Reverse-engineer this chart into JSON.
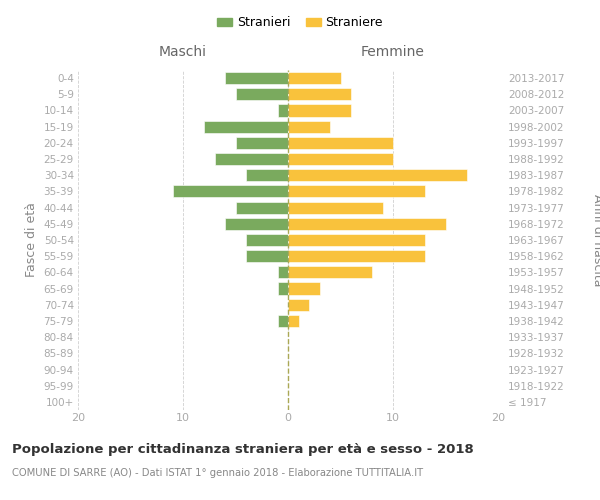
{
  "age_groups": [
    "100+",
    "95-99",
    "90-94",
    "85-89",
    "80-84",
    "75-79",
    "70-74",
    "65-69",
    "60-64",
    "55-59",
    "50-54",
    "45-49",
    "40-44",
    "35-39",
    "30-34",
    "25-29",
    "20-24",
    "15-19",
    "10-14",
    "5-9",
    "0-4"
  ],
  "birth_years": [
    "≤ 1917",
    "1918-1922",
    "1923-1927",
    "1928-1932",
    "1933-1937",
    "1938-1942",
    "1943-1947",
    "1948-1952",
    "1953-1957",
    "1958-1962",
    "1963-1967",
    "1968-1972",
    "1973-1977",
    "1978-1982",
    "1983-1987",
    "1988-1992",
    "1993-1997",
    "1998-2002",
    "2003-2007",
    "2008-2012",
    "2013-2017"
  ],
  "maschi": [
    0,
    0,
    0,
    0,
    0,
    1,
    0,
    1,
    1,
    4,
    4,
    6,
    5,
    11,
    4,
    7,
    5,
    8,
    1,
    5,
    6
  ],
  "femmine": [
    0,
    0,
    0,
    0,
    0,
    1,
    2,
    3,
    8,
    13,
    13,
    15,
    9,
    13,
    17,
    10,
    10,
    4,
    6,
    6,
    5
  ],
  "color_maschi": "#7aaa5e",
  "color_femmine": "#f9c23c",
  "title": "Popolazione per cittadinanza straniera per età e sesso - 2018",
  "subtitle": "COMUNE DI SARRE (AO) - Dati ISTAT 1° gennaio 2018 - Elaborazione TUTTITALIA.IT",
  "ylabel_left": "Fasce di età",
  "ylabel_right": "Anni di nascita",
  "label_maschi": "Maschi",
  "label_femmine": "Femmine",
  "legend_maschi": "Stranieri",
  "legend_femmine": "Straniere",
  "xlim": 20,
  "background_color": "#ffffff",
  "grid_color": "#d0d0d0"
}
